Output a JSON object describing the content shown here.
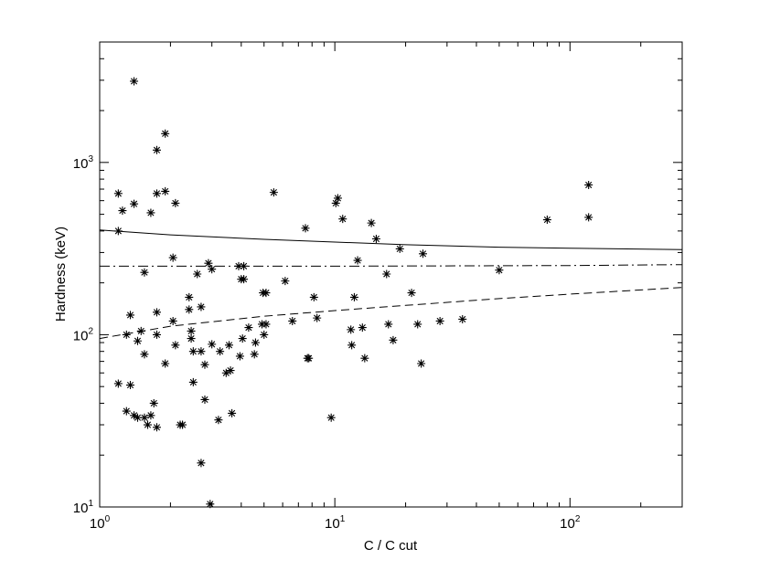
{
  "chart_data": {
    "type": "scatter",
    "xlabel": "C / C cut",
    "ylabel": "Hardness (keV)",
    "xscale": "log",
    "yscale": "log",
    "xlim": [
      1,
      300
    ],
    "ylim": [
      10,
      5000
    ],
    "x_ticks": [
      {
        "base": "10",
        "exp": "0",
        "value": 1
      },
      {
        "base": "10",
        "exp": "1",
        "value": 10
      },
      {
        "base": "10",
        "exp": "2",
        "value": 100
      }
    ],
    "y_ticks": [
      {
        "base": "10",
        "exp": "1",
        "value": 10
      },
      {
        "base": "10",
        "exp": "2",
        "value": 100
      },
      {
        "base": "10",
        "exp": "3",
        "value": 1000
      }
    ],
    "grid": false,
    "marker": "asterisk",
    "points": [
      [
        1.4,
        2960
      ],
      [
        1.9,
        1470
      ],
      [
        1.75,
        1180
      ],
      [
        1.2,
        660
      ],
      [
        1.4,
        575
      ],
      [
        1.25,
        525
      ],
      [
        1.75,
        660
      ],
      [
        1.9,
        680
      ],
      [
        2.1,
        580
      ],
      [
        1.65,
        510
      ],
      [
        1.2,
        400
      ],
      [
        2.05,
        280
      ],
      [
        1.55,
        230
      ],
      [
        2.9,
        260
      ],
      [
        3.0,
        240
      ],
      [
        2.6,
        225
      ],
      [
        3.9,
        250
      ],
      [
        4.1,
        250
      ],
      [
        4.0,
        210
      ],
      [
        4.1,
        210
      ],
      [
        2.4,
        165
      ],
      [
        2.7,
        145
      ],
      [
        1.75,
        135
      ],
      [
        1.35,
        130
      ],
      [
        2.4,
        140
      ],
      [
        2.05,
        120
      ],
      [
        1.3,
        100
      ],
      [
        1.5,
        105
      ],
      [
        1.45,
        92
      ],
      [
        1.75,
        100
      ],
      [
        2.45,
        105
      ],
      [
        2.45,
        95
      ],
      [
        2.1,
        87
      ],
      [
        2.5,
        80
      ],
      [
        2.7,
        80
      ],
      [
        3.0,
        88
      ],
      [
        3.25,
        80
      ],
      [
        3.55,
        87
      ],
      [
        3.95,
        75
      ],
      [
        4.05,
        95
      ],
      [
        4.3,
        110
      ],
      [
        4.6,
        90
      ],
      [
        4.55,
        77
      ],
      [
        1.55,
        77
      ],
      [
        1.9,
        68
      ],
      [
        2.8,
        67
      ],
      [
        3.6,
        62
      ],
      [
        3.45,
        60
      ],
      [
        2.5,
        53
      ],
      [
        1.2,
        52
      ],
      [
        1.35,
        51
      ],
      [
        2.8,
        42
      ],
      [
        1.7,
        40
      ],
      [
        1.3,
        36
      ],
      [
        1.45,
        33
      ],
      [
        1.4,
        34
      ],
      [
        1.55,
        33
      ],
      [
        1.65,
        34
      ],
      [
        1.6,
        30
      ],
      [
        1.75,
        29
      ],
      [
        2.2,
        30
      ],
      [
        2.25,
        30
      ],
      [
        3.2,
        32
      ],
      [
        3.65,
        35
      ],
      [
        2.7,
        18
      ],
      [
        2.95,
        10.4
      ],
      [
        4.95,
        175
      ],
      [
        5.1,
        175
      ],
      [
        4.9,
        115
      ],
      [
        5.1,
        115
      ],
      [
        5.0,
        100
      ],
      [
        5.5,
        670
      ],
      [
        6.15,
        205
      ],
      [
        6.6,
        120
      ],
      [
        7.5,
        415
      ],
      [
        7.65,
        73
      ],
      [
        7.75,
        73
      ],
      [
        8.15,
        165
      ],
      [
        8.4,
        125
      ],
      [
        9.65,
        33
      ],
      [
        10.1,
        580
      ],
      [
        10.3,
        620
      ],
      [
        10.8,
        470
      ],
      [
        11.7,
        107
      ],
      [
        11.8,
        87
      ],
      [
        12.1,
        165
      ],
      [
        12.5,
        270
      ],
      [
        13.1,
        110
      ],
      [
        13.4,
        73
      ],
      [
        14.3,
        445
      ],
      [
        15.0,
        360
      ],
      [
        16.6,
        225
      ],
      [
        16.9,
        115
      ],
      [
        17.7,
        93
      ],
      [
        18.9,
        315
      ],
      [
        21.2,
        175
      ],
      [
        22.5,
        115
      ],
      [
        23.3,
        68
      ],
      [
        23.7,
        295
      ],
      [
        28.0,
        120
      ],
      [
        34.9,
        123
      ],
      [
        50.0,
        237
      ],
      [
        80.0,
        465
      ],
      [
        120.0,
        740
      ],
      [
        120.0,
        480
      ]
    ],
    "lines": [
      {
        "style": "solid",
        "x": [
          1,
          2,
          5,
          10,
          20,
          50,
          100,
          300
        ],
        "y": [
          405,
          380,
          358,
          345,
          333,
          322,
          318,
          312
        ]
      },
      {
        "style": "dashdot",
        "x": [
          1,
          10,
          100,
          300
        ],
        "y": [
          250,
          250,
          252,
          255
        ]
      },
      {
        "style": "dashed",
        "x": [
          1,
          2,
          5,
          10,
          20,
          50,
          100,
          300
        ],
        "y": [
          95,
          112,
          128,
          138,
          148,
          162,
          172,
          188
        ]
      }
    ]
  }
}
